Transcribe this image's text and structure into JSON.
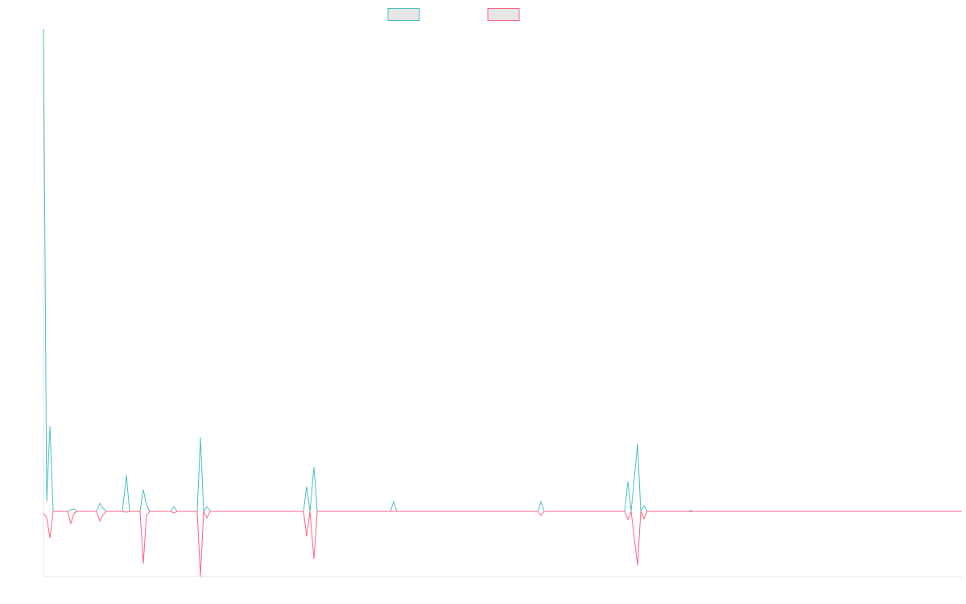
{
  "chart_data": {
    "type": "line",
    "x": [
      0,
      4,
      8,
      12,
      30,
      34,
      38,
      42,
      66,
      70,
      74,
      78,
      98,
      103,
      107,
      120,
      124,
      128,
      132,
      158,
      162,
      166,
      191,
      195,
      199,
      203,
      207,
      323,
      327,
      331,
      336,
      340,
      431,
      435,
      439,
      614,
      618,
      622,
      722,
      726,
      730,
      738,
      742,
      746,
      750,
      800,
      804,
      808,
      1141
    ],
    "series": [
      {
        "color": "#4bc0c0",
        "values": [
          599,
          12,
          106,
          0,
          0,
          2,
          3,
          0,
          0,
          10,
          4,
          0,
          0,
          45,
          0,
          0,
          27,
          8,
          0,
          0,
          6,
          0,
          0,
          92,
          0,
          6,
          0,
          0,
          31,
          0,
          55,
          0,
          0,
          12,
          0,
          0,
          12,
          0,
          0,
          37,
          0,
          84,
          0,
          7,
          0,
          0,
          1,
          0,
          0
        ]
      },
      {
        "color": "#ff6384",
        "values": [
          -2,
          -8,
          -33,
          0,
          0,
          -15,
          -2,
          0,
          0,
          -12,
          -4,
          0,
          0,
          -1,
          0,
          0,
          -65,
          -5,
          0,
          0,
          -2,
          0,
          0,
          -81,
          0,
          -8,
          0,
          0,
          -31,
          0,
          -59,
          0,
          0,
          0,
          0,
          0,
          -5,
          0,
          0,
          -10,
          0,
          -67,
          0,
          -9,
          0,
          0,
          0,
          0,
          0
        ]
      }
    ],
    "xlim": [
      0,
      1141
    ],
    "ylim": [
      -81,
      599
    ],
    "legend": "top"
  }
}
